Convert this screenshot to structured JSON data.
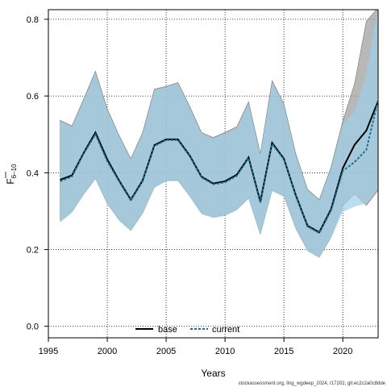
{
  "chart_data": {
    "type": "area",
    "xlabel": "Years",
    "ylabel": "F",
    "ylabel_subscript": "6–10",
    "xlim": [
      1995,
      2023
    ],
    "ylim": [
      -0.03,
      0.825
    ],
    "x_ticks": [
      1995,
      2000,
      2005,
      2010,
      2015,
      2020
    ],
    "y_ticks": [
      "0.0",
      "0.2",
      "0.4",
      "0.6",
      "0.8"
    ],
    "y_tick_values": [
      0.0,
      0.2,
      0.4,
      0.6,
      0.8
    ],
    "grid": true,
    "legend_position": "bottom-center",
    "legend": [
      "base",
      "current"
    ],
    "footer": "stockassessment.org, ling_wgdeep_2024, r17202, git:ec2c2a0c8dde",
    "colors": {
      "base_band": "#a0a0a0",
      "current_band": "#9dd0ea",
      "overlap_band": "#8fb3c8",
      "base_line": "#000000",
      "current_line": "#1b6f91"
    },
    "x": [
      1996,
      1997,
      1998,
      1999,
      2000,
      2001,
      2002,
      2003,
      2004,
      2005,
      2006,
      2007,
      2008,
      2009,
      2010,
      2011,
      2012,
      2013,
      2014,
      2015,
      2016,
      2017,
      2018,
      2019,
      2020,
      2021,
      2022,
      2023
    ],
    "series": [
      {
        "name": "base",
        "values": [
          0.382,
          0.393,
          0.452,
          0.505,
          0.435,
          0.38,
          0.33,
          0.38,
          0.472,
          0.487,
          0.487,
          0.445,
          0.39,
          0.372,
          0.378,
          0.395,
          0.44,
          0.325,
          0.478,
          0.437,
          0.342,
          0.262,
          0.245,
          0.305,
          0.412,
          0.473,
          0.51,
          0.587
        ],
        "lower": [
          0.275,
          0.3,
          0.345,
          0.385,
          0.32,
          0.278,
          0.25,
          0.295,
          0.363,
          0.38,
          0.38,
          0.34,
          0.295,
          0.285,
          0.29,
          0.305,
          0.335,
          0.24,
          0.355,
          0.34,
          0.255,
          0.198,
          0.18,
          0.232,
          0.315,
          0.345,
          0.315,
          0.355
        ],
        "upper": [
          0.537,
          0.522,
          0.592,
          0.665,
          0.567,
          0.498,
          0.437,
          0.505,
          0.618,
          0.625,
          0.635,
          0.573,
          0.505,
          0.492,
          0.505,
          0.52,
          0.585,
          0.45,
          0.64,
          0.58,
          0.45,
          0.357,
          0.33,
          0.415,
          0.535,
          0.632,
          0.795,
          0.83
        ]
      },
      {
        "name": "current",
        "values": [
          0.378,
          0.39,
          0.45,
          0.5,
          0.43,
          0.378,
          0.328,
          0.378,
          0.47,
          0.485,
          0.485,
          0.443,
          0.388,
          0.37,
          0.375,
          0.392,
          0.438,
          0.322,
          0.475,
          0.435,
          0.34,
          0.26,
          0.243,
          0.302,
          0.405,
          0.428,
          0.46,
          0.59
        ],
        "lower": [
          0.27,
          0.295,
          0.342,
          0.383,
          0.318,
          0.275,
          0.248,
          0.293,
          0.36,
          0.378,
          0.378,
          0.338,
          0.292,
          0.282,
          0.288,
          0.302,
          0.332,
          0.237,
          0.352,
          0.337,
          0.253,
          0.196,
          0.178,
          0.23,
          0.298,
          0.312,
          0.32,
          0.36
        ],
        "upper": [
          0.533,
          0.518,
          0.588,
          0.66,
          0.563,
          0.495,
          0.435,
          0.5,
          0.615,
          0.622,
          0.632,
          0.57,
          0.502,
          0.488,
          0.502,
          0.515,
          0.58,
          0.447,
          0.635,
          0.577,
          0.447,
          0.355,
          0.328,
          0.41,
          0.525,
          0.56,
          0.655,
          0.83
        ]
      }
    ]
  }
}
